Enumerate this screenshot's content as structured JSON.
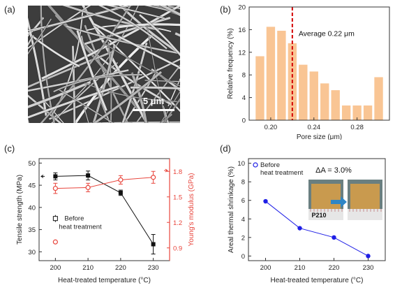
{
  "panel_labels": [
    "(a)",
    "(b)",
    "(c)",
    "(d)"
  ],
  "colors": {
    "bar": "#f9c594",
    "mean_line": "#d40000",
    "black_series": "#111111",
    "red_series": "#e8453c",
    "blue_series": "#1f1fe6",
    "axis": "#333333",
    "red_axis": "#e8453c"
  },
  "panel_a": {
    "scale_bar_label": "5 μm",
    "icons": [
      "sem-micrograph-image"
    ]
  },
  "chart_data": [
    {
      "id": "b",
      "type": "bar",
      "xlabel": "Pore size (μm)",
      "ylabel": "Relative frequency (%)",
      "xlim": [
        0.18,
        0.31
      ],
      "ylim": [
        0,
        20
      ],
      "xticks": [
        "0.20",
        "0.24",
        "0.28"
      ],
      "xtick_values": [
        0.2,
        0.24,
        0.28
      ],
      "yticks": [
        0,
        4,
        8,
        12,
        16,
        20
      ],
      "bar_width": 0.008,
      "x": [
        0.19,
        0.2,
        0.21,
        0.22,
        0.23,
        0.24,
        0.25,
        0.26,
        0.27,
        0.28,
        0.29,
        0.3
      ],
      "values": [
        11.3,
        16.5,
        15.8,
        13.6,
        9.8,
        8.6,
        6.5,
        5.3,
        2.6,
        2.6,
        2.6,
        7.6
      ],
      "annotation": {
        "text": "Average 0.22 μm",
        "x": 0.22
      }
    },
    {
      "id": "c",
      "type": "line",
      "xlabel": "Heat-treated temperature (°C)",
      "ylabel": "Tensile strength (MPa)",
      "y2label": "Young's modulus (GPa)",
      "xlim": [
        195,
        235
      ],
      "ylim": [
        28,
        51
      ],
      "y2lim": [
        0.75,
        1.95
      ],
      "xticks": [
        200,
        210,
        220,
        230
      ],
      "yticks": [
        30,
        35,
        40,
        45,
        50
      ],
      "y2ticks": [
        "0.9",
        "1.2",
        "1.5",
        "1.8"
      ],
      "y2tick_values": [
        0.9,
        1.2,
        1.5,
        1.8
      ],
      "x": [
        200,
        210,
        220,
        230
      ],
      "series": [
        {
          "axis": "left",
          "values": [
            47.0,
            47.2,
            43.3,
            31.7
          ],
          "errors": [
            0.8,
            1.0,
            0.6,
            2.2
          ]
        },
        {
          "axis": "right",
          "values": [
            1.6,
            1.61,
            1.7,
            1.73
          ],
          "errors": [
            0.06,
            0.05,
            0.05,
            0.07
          ]
        }
      ],
      "legend": {
        "line1": "Before",
        "line2": "heat treatment",
        "y_black": 37.5,
        "y2_red": 0.97
      }
    },
    {
      "id": "d",
      "type": "line",
      "xlabel": "Heat-treated temperature (°C)",
      "ylabel": "Areal thermal shrinkage (%)",
      "xlim": [
        195,
        235
      ],
      "ylim": [
        -0.5,
        10.5
      ],
      "xticks": [
        200,
        210,
        220,
        230
      ],
      "yticks": [
        0,
        2,
        4,
        6,
        8,
        10
      ],
      "x": [
        200,
        210,
        220,
        230
      ],
      "values": [
        5.9,
        3.0,
        2.0,
        0.0
      ],
      "legend": {
        "line1": "Before",
        "line2": "heat treatment"
      },
      "inset": {
        "delta_label": "ΔA = 3.0%",
        "sample_label": "P210",
        "icons": [
          "membrane-before-photo",
          "arrow-right-icon",
          "membrane-after-photo"
        ]
      }
    }
  ]
}
